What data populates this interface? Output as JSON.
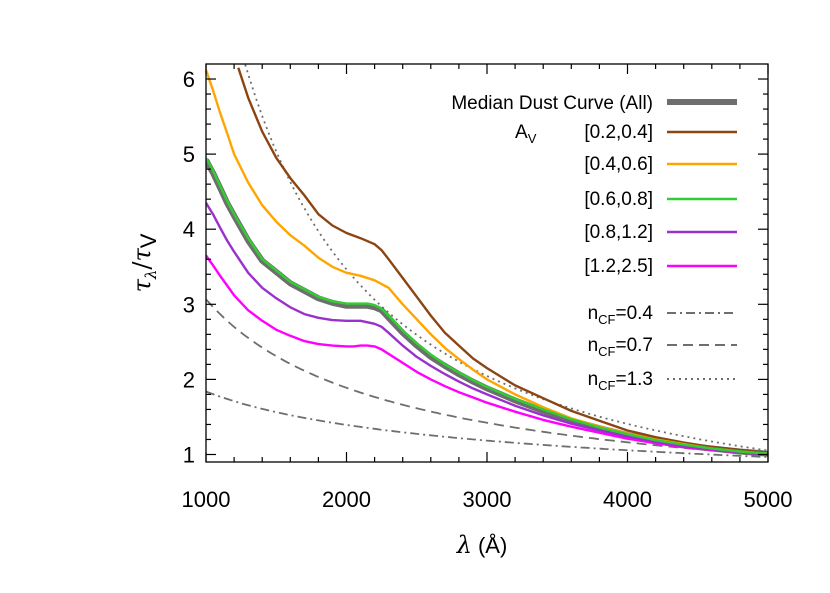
{
  "chart_data": {
    "type": "line",
    "title": "",
    "xlabel": "λ (Å)",
    "xlabel_parts": {
      "symbol": "λ",
      "unit": "(Å)"
    },
    "ylabel": "τλ/τV",
    "ylabel_parts": {
      "tau": "τ",
      "lambda_sub": "λ",
      "slash": "/",
      "v_sub": "V"
    },
    "xlim": [
      1000,
      5000
    ],
    "ylim": [
      0.9,
      6.2
    ],
    "xticks": [
      1000,
      2000,
      3000,
      4000,
      5000
    ],
    "yticks": [
      1,
      2,
      3,
      4,
      5,
      6
    ],
    "grid": false,
    "legend_position": "top-right",
    "legend_group_label": {
      "main": "A",
      "sub": "V"
    },
    "series": [
      {
        "name": "Median Dust Curve (All)",
        "color": "#6e6e6e",
        "style": "solid-thick",
        "x": [
          1000,
          1050,
          1100,
          1150,
          1200,
          1300,
          1400,
          1500,
          1600,
          1700,
          1800,
          1900,
          2000,
          2050,
          2100,
          2150,
          2200,
          2250,
          2300,
          2400,
          2500,
          2600,
          2700,
          2800,
          2900,
          3000,
          3200,
          3400,
          3600,
          3800,
          4000,
          4200,
          4400,
          4600,
          4800,
          5000
        ],
        "y": [
          4.92,
          4.75,
          4.55,
          4.35,
          4.18,
          3.85,
          3.58,
          3.43,
          3.28,
          3.18,
          3.08,
          3.02,
          2.98,
          2.98,
          2.98,
          2.98,
          2.96,
          2.92,
          2.82,
          2.62,
          2.45,
          2.3,
          2.18,
          2.07,
          1.97,
          1.88,
          1.72,
          1.58,
          1.45,
          1.35,
          1.26,
          1.18,
          1.12,
          1.08,
          1.04,
          1.01
        ]
      },
      {
        "name": "[0.2,0.4]",
        "color": "#8B4513",
        "style": "solid",
        "x": [
          1230,
          1300,
          1400,
          1500,
          1600,
          1700,
          1800,
          1900,
          2000,
          2100,
          2200,
          2250,
          2300,
          2400,
          2500,
          2600,
          2700,
          2800,
          2900,
          3000,
          3200,
          3400,
          3600,
          3800,
          4000,
          4200,
          4400,
          4600,
          4800,
          5000
        ],
        "y": [
          6.15,
          5.75,
          5.3,
          4.95,
          4.68,
          4.45,
          4.2,
          4.05,
          3.95,
          3.88,
          3.8,
          3.72,
          3.6,
          3.35,
          3.1,
          2.85,
          2.62,
          2.45,
          2.28,
          2.15,
          1.92,
          1.75,
          1.58,
          1.45,
          1.32,
          1.23,
          1.16,
          1.1,
          1.06,
          1.02
        ]
      },
      {
        "name": "[0.4,0.6]",
        "color": "#FFA500",
        "style": "solid",
        "x": [
          1000,
          1050,
          1100,
          1150,
          1200,
          1300,
          1400,
          1500,
          1600,
          1700,
          1800,
          1900,
          2000,
          2100,
          2200,
          2300,
          2400,
          2500,
          2600,
          2700,
          2800,
          2900,
          3000,
          3200,
          3400,
          3600,
          3800,
          4000,
          4200,
          4400,
          4600,
          4800,
          5000
        ],
        "y": [
          6.12,
          5.85,
          5.55,
          5.28,
          5.0,
          4.62,
          4.32,
          4.1,
          3.92,
          3.78,
          3.62,
          3.5,
          3.42,
          3.38,
          3.32,
          3.22,
          3.0,
          2.8,
          2.6,
          2.42,
          2.27,
          2.13,
          2.0,
          1.8,
          1.63,
          1.48,
          1.37,
          1.28,
          1.2,
          1.14,
          1.08,
          1.04,
          1.01
        ]
      },
      {
        "name": "[0.6,0.8]",
        "color": "#32CD32",
        "style": "solid",
        "x": [
          1000,
          1050,
          1100,
          1150,
          1200,
          1300,
          1400,
          1500,
          1600,
          1700,
          1800,
          1900,
          2000,
          2050,
          2100,
          2150,
          2200,
          2250,
          2300,
          2400,
          2500,
          2600,
          2700,
          2800,
          2900,
          3000,
          3200,
          3400,
          3600,
          3800,
          4000,
          4200,
          4400,
          4600,
          4800,
          5000
        ],
        "y": [
          4.95,
          4.78,
          4.58,
          4.38,
          4.2,
          3.88,
          3.6,
          3.45,
          3.3,
          3.2,
          3.1,
          3.04,
          3.01,
          3.01,
          3.01,
          3.01,
          2.99,
          2.94,
          2.85,
          2.65,
          2.48,
          2.33,
          2.2,
          2.09,
          1.99,
          1.9,
          1.74,
          1.6,
          1.47,
          1.36,
          1.27,
          1.19,
          1.13,
          1.08,
          1.04,
          1.01
        ]
      },
      {
        "name": "[0.8,1.2]",
        "color": "#9932CC",
        "style": "solid",
        "x": [
          1000,
          1050,
          1100,
          1150,
          1200,
          1300,
          1400,
          1500,
          1600,
          1700,
          1800,
          1900,
          2000,
          2050,
          2100,
          2150,
          2200,
          2250,
          2300,
          2400,
          2500,
          2600,
          2700,
          2800,
          2900,
          3000,
          3200,
          3400,
          3600,
          3800,
          4000,
          4200,
          4400,
          4600,
          4800,
          5000
        ],
        "y": [
          4.35,
          4.2,
          4.02,
          3.85,
          3.7,
          3.42,
          3.22,
          3.08,
          2.96,
          2.87,
          2.82,
          2.79,
          2.78,
          2.78,
          2.78,
          2.76,
          2.74,
          2.7,
          2.62,
          2.45,
          2.3,
          2.18,
          2.07,
          1.97,
          1.88,
          1.8,
          1.65,
          1.52,
          1.41,
          1.32,
          1.24,
          1.17,
          1.11,
          1.07,
          1.03,
          1.0
        ]
      },
      {
        "name": "[1.2,2.5]",
        "color": "#FF00FF",
        "style": "solid",
        "x": [
          1000,
          1050,
          1100,
          1150,
          1200,
          1300,
          1400,
          1500,
          1600,
          1700,
          1800,
          1900,
          2000,
          2050,
          2100,
          2150,
          2200,
          2250,
          2300,
          2400,
          2500,
          2600,
          2700,
          2800,
          2900,
          3000,
          3200,
          3400,
          3600,
          3800,
          4000,
          4200,
          4400,
          4600,
          4800,
          5000
        ],
        "y": [
          3.65,
          3.52,
          3.38,
          3.25,
          3.12,
          2.92,
          2.78,
          2.66,
          2.58,
          2.51,
          2.47,
          2.45,
          2.44,
          2.44,
          2.45,
          2.45,
          2.44,
          2.4,
          2.34,
          2.22,
          2.1,
          2.0,
          1.91,
          1.83,
          1.76,
          1.69,
          1.57,
          1.46,
          1.37,
          1.29,
          1.21,
          1.15,
          1.1,
          1.06,
          1.03,
          1.0
        ]
      },
      {
        "name": "n_CF=0.4",
        "label_base": "n",
        "label_sub": "CF",
        "label_tail": "=0.4",
        "color": "#6e6e6e",
        "style": "dashdot",
        "power_law_index": 0.4
      },
      {
        "name": "n_CF=0.7",
        "label_base": "n",
        "label_sub": "CF",
        "label_tail": "=0.7",
        "color": "#6e6e6e",
        "style": "dashed",
        "power_law_index": 0.7
      },
      {
        "name": "n_CF=1.3",
        "label_base": "n",
        "label_sub": "CF",
        "label_tail": "=1.3",
        "color": "#6e6e6e",
        "style": "dotted",
        "power_law_index": 1.3
      }
    ]
  }
}
